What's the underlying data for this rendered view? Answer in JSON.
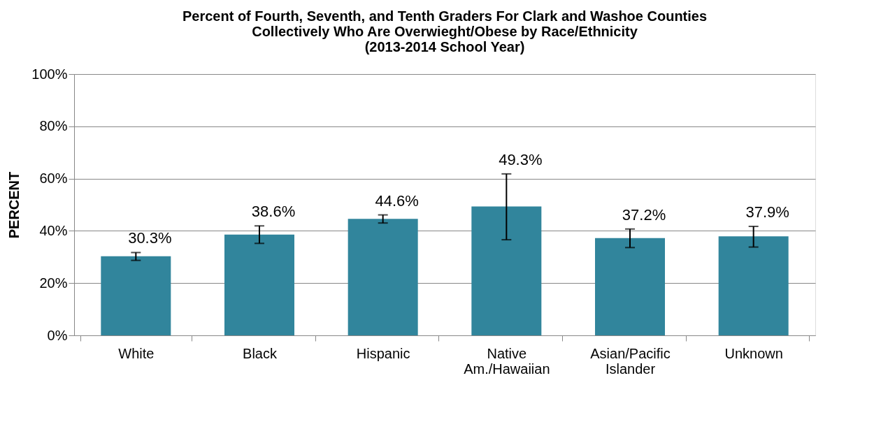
{
  "chart_data": {
    "type": "bar",
    "title": "Percent of Fourth, Seventh, and Tenth Graders For Clark and Washoe Counties\nCollectively Who Are  Overwieght/Obese by Race/Ethnicity\n(2013-2014 School Year)",
    "ylabel": "PERCENT",
    "categories": [
      "White",
      "Black",
      "Hispanic",
      "Native Am./Hawaiian",
      "Asian/Pacific Islander",
      "Unknown"
    ],
    "values": [
      30.3,
      38.6,
      44.6,
      49.3,
      37.2,
      37.9
    ],
    "value_labels": [
      "30.3%",
      "38.6%",
      "44.6%",
      "49.3%",
      "37.2%",
      "37.9%"
    ],
    "errors": [
      [
        28.7,
        31.7
      ],
      [
        35.2,
        41.9
      ],
      [
        43.0,
        46.1
      ],
      [
        36.6,
        61.8
      ],
      [
        33.6,
        40.7
      ],
      [
        33.8,
        41.7
      ]
    ],
    "color": "#31859c",
    "ylim": [
      0,
      100
    ],
    "yticks": [
      {
        "value": 0,
        "label": "0%"
      },
      {
        "value": 20,
        "label": "20%"
      },
      {
        "value": 40,
        "label": "40%"
      },
      {
        "value": 60,
        "label": "60%"
      },
      {
        "value": 80,
        "label": "80%"
      },
      {
        "value": 100,
        "label": "100%"
      }
    ],
    "grid": "y"
  }
}
